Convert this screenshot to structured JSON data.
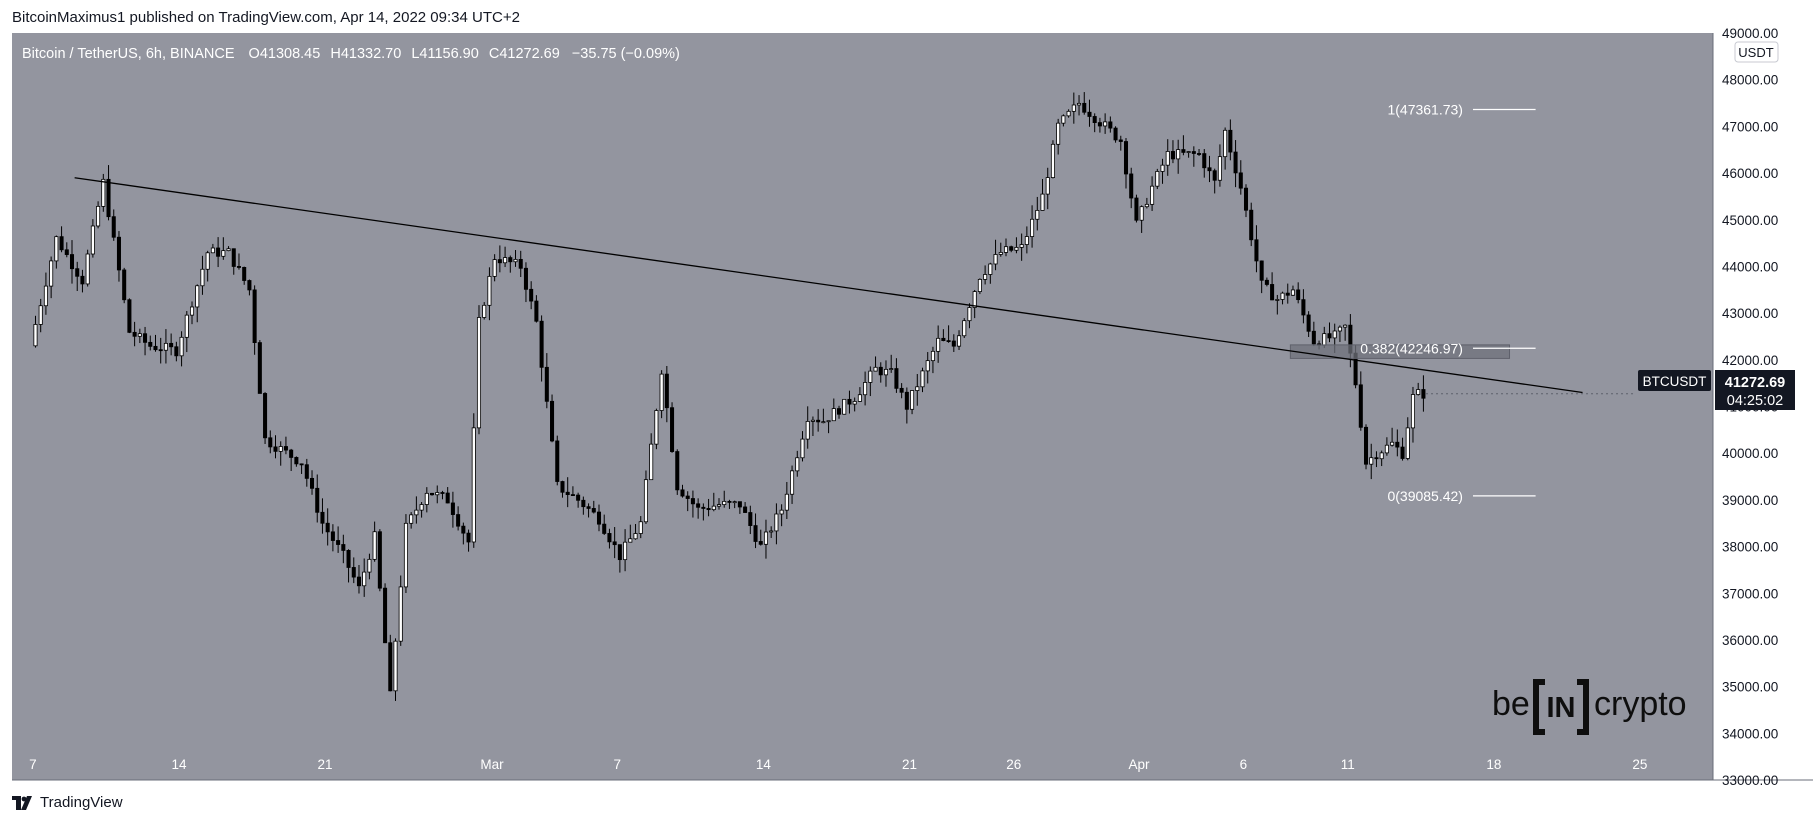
{
  "header": {
    "publisher_line": "BitcoinMaximus1 published on TradingView.com, Apr 14, 2022 09:34 UTC+2"
  },
  "legend": {
    "symbol": "Bitcoin / TetherUS, 6h, BINANCE",
    "o_label": "O",
    "o_value": "41308.45",
    "h_label": "H",
    "h_value": "41332.70",
    "l_label": "L",
    "l_value": "41156.90",
    "c_label": "C",
    "c_value": "41272.69",
    "change": "−35.75 (−0.09%)"
  },
  "price_axis": {
    "currency": "USDT",
    "ticks": [
      "49000.00",
      "48000.00",
      "47000.00",
      "46000.00",
      "45000.00",
      "44000.00",
      "43000.00",
      "42000.00",
      "41000.00",
      "40000.00",
      "39000.00",
      "38000.00",
      "37000.00",
      "36000.00",
      "35000.00",
      "34000.00",
      "33000.00"
    ],
    "symbol_tag": "BTCUSDT",
    "last_price": "41272.69",
    "countdown": "04:25:02"
  },
  "time_axis": {
    "labels": [
      "7",
      "14",
      "21",
      "Mar",
      "7",
      "14",
      "21",
      "26",
      "Apr",
      "6",
      "11",
      "18",
      "25"
    ]
  },
  "fib": [
    {
      "label": "1(47361.73)",
      "price": 47361.73
    },
    {
      "label": "0.382(42246.97)",
      "price": 42246.97
    },
    {
      "label": "0(39085.42)",
      "price": 39085.42
    }
  ],
  "watermark": {
    "left": "be",
    "middle": "IN",
    "right": "crypto"
  },
  "footer": {
    "brand": "TradingView"
  },
  "colors": {
    "plot_bg": "#93959f",
    "up_candle": "#ffffff",
    "down_candle": "#000000",
    "trendline": "#000000",
    "axis_bg": "#ffffff",
    "badge_bg": "#131722"
  },
  "chart_data": {
    "type": "candlestick",
    "title": "Bitcoin / TetherUS, 6h, BINANCE",
    "ylabel": "USDT",
    "ylim": [
      33000,
      49000
    ],
    "grid": false,
    "anchors": [
      [
        "2022-02-07T00:00",
        42300
      ],
      [
        "2022-02-08T06:00",
        44600
      ],
      [
        "2022-02-09T12:00",
        43700
      ],
      [
        "2022-02-10T12:00",
        45800
      ],
      [
        "2022-02-11T06:00",
        43900
      ],
      [
        "2022-02-11T18:00",
        42600
      ],
      [
        "2022-02-12T18:00",
        42300
      ],
      [
        "2022-02-14T00:00",
        42200
      ],
      [
        "2022-02-15T12:00",
        44300
      ],
      [
        "2022-02-16T12:00",
        44300
      ],
      [
        "2022-02-17T12:00",
        43500
      ],
      [
        "2022-02-18T06:00",
        40300
      ],
      [
        "2022-02-20T00:00",
        39800
      ],
      [
        "2022-02-21T00:00",
        38500
      ],
      [
        "2022-02-22T00:00",
        37800
      ],
      [
        "2022-02-22T18:00",
        37100
      ],
      [
        "2022-02-23T12:00",
        38200
      ],
      [
        "2022-02-24T06:00",
        34800
      ],
      [
        "2022-02-25T00:00",
        38400
      ],
      [
        "2022-02-26T00:00",
        39200
      ],
      [
        "2022-02-27T00:00",
        39000
      ],
      [
        "2022-02-28T00:00",
        38100
      ],
      [
        "2022-02-28T12:00",
        42800
      ],
      [
        "2022-03-01T06:00",
        44200
      ],
      [
        "2022-03-02T12:00",
        44000
      ],
      [
        "2022-03-03T06:00",
        42800
      ],
      [
        "2022-03-04T06:00",
        39300
      ],
      [
        "2022-03-05T06:00",
        39000
      ],
      [
        "2022-03-06T06:00",
        38600
      ],
      [
        "2022-03-07T06:00",
        37800
      ],
      [
        "2022-03-08T06:00",
        38500
      ],
      [
        "2022-03-09T06:00",
        41800
      ],
      [
        "2022-03-10T00:00",
        39300
      ],
      [
        "2022-03-11T00:00",
        38800
      ],
      [
        "2022-03-12T00:00",
        38900
      ],
      [
        "2022-03-13T00:00",
        38900
      ],
      [
        "2022-03-14T00:00",
        38000
      ],
      [
        "2022-03-15T00:00",
        38800
      ],
      [
        "2022-03-16T06:00",
        40800
      ],
      [
        "2022-03-17T00:00",
        40700
      ],
      [
        "2022-03-18T12:00",
        41200
      ],
      [
        "2022-03-19T12:00",
        41800
      ],
      [
        "2022-03-20T06:00",
        41700
      ],
      [
        "2022-03-21T00:00",
        41000
      ],
      [
        "2022-03-22T12:00",
        42400
      ],
      [
        "2022-03-23T06:00",
        42300
      ],
      [
        "2022-03-24T12:00",
        43800
      ],
      [
        "2022-03-25T12:00",
        44300
      ],
      [
        "2022-03-26T12:00",
        44400
      ],
      [
        "2022-03-27T12:00",
        45500
      ],
      [
        "2022-03-28T06:00",
        47000
      ],
      [
        "2022-03-29T06:00",
        47500
      ],
      [
        "2022-03-30T06:00",
        47100
      ],
      [
        "2022-03-31T06:00",
        46700
      ],
      [
        "2022-04-01T00:00",
        44900
      ],
      [
        "2022-04-01T18:00",
        45700
      ],
      [
        "2022-04-02T12:00",
        46400
      ],
      [
        "2022-04-04T00:00",
        46400
      ],
      [
        "2022-04-04T18:00",
        45800
      ],
      [
        "2022-04-05T06:00",
        46900
      ],
      [
        "2022-04-06T00:00",
        45700
      ],
      [
        "2022-04-07T00:00",
        43600
      ],
      [
        "2022-04-07T18:00",
        43300
      ],
      [
        "2022-04-08T12:00",
        43500
      ],
      [
        "2022-04-09T12:00",
        42400
      ],
      [
        "2022-04-10T12:00",
        42500
      ],
      [
        "2022-04-11T00:00",
        42700
      ],
      [
        "2022-04-11T12:00",
        41500
      ],
      [
        "2022-04-12T00:00",
        39800
      ],
      [
        "2022-04-12T12:00",
        40000
      ],
      [
        "2022-04-13T06:00",
        40200
      ],
      [
        "2022-04-13T18:00",
        40000
      ],
      [
        "2022-04-14T06:00",
        41200
      ],
      [
        "2022-04-14T12:00",
        41273
      ]
    ],
    "trendline": {
      "points": [
        [
          "2022-02-09T00:00",
          45900
        ],
        [
          "2022-04-22T06:00",
          41300
        ]
      ]
    },
    "support_zone": {
      "x_range": [
        "2022-04-08T06:00",
        "2022-04-18T18:00"
      ],
      "y_range": [
        42030,
        42320
      ]
    },
    "fib_levels": [
      47361.73,
      42246.97,
      39085.42
    ],
    "fib_x_range": [
      "2022-04-17T00:00",
      "2022-04-20T00:00"
    ],
    "x_ticks": [
      "2022-02-07",
      "2022-02-14",
      "2022-02-21",
      "2022-03-01",
      "2022-03-07",
      "2022-03-14",
      "2022-03-21",
      "2022-03-26",
      "2022-04-01",
      "2022-04-06",
      "2022-04-11",
      "2022-04-18",
      "2022-04-25"
    ],
    "y_ticks": [
      49000,
      48000,
      47000,
      46000,
      45000,
      44000,
      43000,
      42000,
      41000,
      40000,
      39000,
      38000,
      37000,
      36000,
      35000,
      34000,
      33000
    ],
    "last_price": 41272.69,
    "x_range": [
      "2022-02-06T00:00",
      "2022-04-28T12:00"
    ]
  }
}
